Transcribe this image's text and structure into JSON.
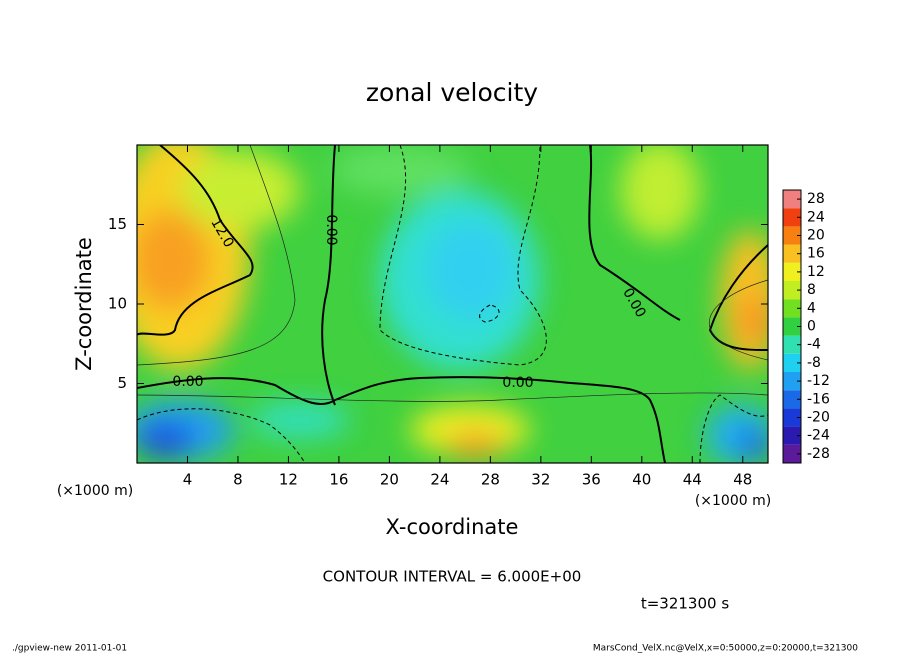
{
  "chart_data": {
    "type": "contour",
    "title": "zonal velocity",
    "x_label": "X-coordinate",
    "y_label": "Z-coordinate",
    "x_unit": "(×1000 m)",
    "xlim": [
      0,
      50
    ],
    "xticks": [
      4,
      8,
      12,
      16,
      20,
      24,
      28,
      32,
      36,
      40,
      44,
      48
    ],
    "ylim": [
      0,
      20
    ],
    "yticks": [
      5,
      10,
      15
    ],
    "contour_labels": [
      "12.0",
      "0.00",
      "0.00",
      "0.00",
      "0.00"
    ],
    "colorbar_lim": [
      -30,
      30
    ],
    "colorbar_ticks": [
      28,
      24,
      20,
      16,
      12,
      8,
      4,
      0,
      -4,
      -8,
      -12,
      -16,
      -20,
      -24,
      -28
    ],
    "colorbar_colors": [
      "#5a1a9a",
      "#2a1ab0",
      "#1a3ad8",
      "#1a6ae8",
      "#20a0f0",
      "#20d0f0",
      "#30e0b0",
      "#30d040",
      "#70e020",
      "#c0ee20",
      "#f0f020",
      "#f8c020",
      "#f88010",
      "#f04010",
      "#f08080"
    ],
    "contour_interval": "CONTOUR INTERVAL = 6.000E+00",
    "time": "t=321300 s",
    "footer_left": "./gpview-new  2011-01-01",
    "footer_right": "MarsCond_VelX.nc@VelX,x=0:50000,z=0:20000,t=321300"
  }
}
